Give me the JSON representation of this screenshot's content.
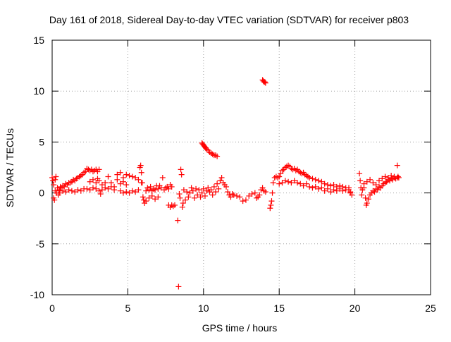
{
  "chart_data": {
    "type": "scatter",
    "title": "Day 161 of 2018, Sidereal Day-to-day VTEC variation (SDTVAR) for receiver p803",
    "xlabel": "GPS time / hours",
    "ylabel": "SDTVAR / TECUs",
    "xlim": [
      0,
      25
    ],
    "ylim": [
      -10,
      15
    ],
    "xticks": [
      0,
      5,
      10,
      15,
      20,
      25
    ],
    "yticks": [
      -10,
      -5,
      0,
      5,
      10,
      15
    ],
    "grid": true,
    "marker": "+",
    "color": "#ff0000",
    "series": [
      {
        "name": "SDTVAR",
        "points": [
          [
            0.0,
            1.5
          ],
          [
            0.05,
            1.2
          ],
          [
            0.1,
            -0.5
          ],
          [
            0.1,
            0.8
          ],
          [
            0.15,
            -0.7
          ],
          [
            0.2,
            1.3
          ],
          [
            0.2,
            0.2
          ],
          [
            0.25,
            1.6
          ],
          [
            0.3,
            0.0
          ],
          [
            0.35,
            0.5
          ],
          [
            0.4,
            -0.2
          ],
          [
            0.45,
            0.3
          ],
          [
            0.5,
            0.2
          ],
          [
            0.55,
            0.6
          ],
          [
            0.6,
            0.5
          ],
          [
            0.7,
            0.7
          ],
          [
            0.8,
            0.6
          ],
          [
            0.9,
            0.9
          ],
          [
            1.0,
            0.8
          ],
          [
            1.1,
            1.0
          ],
          [
            1.2,
            1.0
          ],
          [
            1.3,
            1.1
          ],
          [
            1.4,
            1.3
          ],
          [
            1.5,
            1.2
          ],
          [
            1.6,
            1.4
          ],
          [
            1.7,
            1.5
          ],
          [
            1.8,
            1.6
          ],
          [
            1.9,
            1.7
          ],
          [
            2.0,
            1.8
          ],
          [
            2.1,
            2.0
          ],
          [
            2.2,
            2.1
          ],
          [
            2.3,
            2.4
          ],
          [
            2.4,
            2.3
          ],
          [
            2.5,
            2.2
          ],
          [
            2.6,
            2.3
          ],
          [
            2.7,
            2.1
          ],
          [
            2.8,
            2.2
          ],
          [
            2.9,
            2.3
          ],
          [
            3.0,
            2.1
          ],
          [
            3.1,
            2.3
          ],
          [
            0.5,
            0.0
          ],
          [
            0.7,
            0.2
          ],
          [
            0.9,
            0.1
          ],
          [
            1.1,
            0.3
          ],
          [
            1.3,
            0.2
          ],
          [
            1.5,
            0.1
          ],
          [
            1.7,
            0.3
          ],
          [
            1.9,
            0.2
          ],
          [
            2.1,
            0.4
          ],
          [
            2.3,
            0.4
          ],
          [
            2.5,
            0.3
          ],
          [
            2.7,
            0.5
          ],
          [
            2.9,
            0.4
          ],
          [
            3.1,
            0.2
          ],
          [
            3.2,
            -0.1
          ],
          [
            2.5,
            1.1
          ],
          [
            2.7,
            1.3
          ],
          [
            2.9,
            1.0
          ],
          [
            3.0,
            1.4
          ],
          [
            3.1,
            1.2
          ],
          [
            3.3,
            0.8
          ],
          [
            3.5,
            1.0
          ],
          [
            3.7,
            1.6
          ],
          [
            3.9,
            1.0
          ],
          [
            4.1,
            0.6
          ],
          [
            4.3,
            1.3
          ],
          [
            4.5,
            0.9
          ],
          [
            4.7,
            1.1
          ],
          [
            4.9,
            0.8
          ],
          [
            3.3,
            0.3
          ],
          [
            3.5,
            0.5
          ],
          [
            3.7,
            0.4
          ],
          [
            3.9,
            0.6
          ],
          [
            4.1,
            0.3
          ],
          [
            4.3,
            1.8
          ],
          [
            4.5,
            2.0
          ],
          [
            4.7,
            1.5
          ],
          [
            4.9,
            1.8
          ],
          [
            5.1,
            1.7
          ],
          [
            5.3,
            1.6
          ],
          [
            5.5,
            1.5
          ],
          [
            5.7,
            1.3
          ],
          [
            5.9,
            1.0
          ],
          [
            4.5,
            0.2
          ],
          [
            4.7,
            0.0
          ],
          [
            4.9,
            0.1
          ],
          [
            5.1,
            0.0
          ],
          [
            5.3,
            0.2
          ],
          [
            5.5,
            0.1
          ],
          [
            5.7,
            0.3
          ],
          [
            5.8,
            2.5
          ],
          [
            5.85,
            2.7
          ],
          [
            5.9,
            2.0
          ],
          [
            5.95,
            1.0
          ],
          [
            6.0,
            -0.4
          ],
          [
            6.05,
            -0.7
          ],
          [
            6.1,
            -1.0
          ],
          [
            6.2,
            0.2
          ],
          [
            6.3,
            0.5
          ],
          [
            6.4,
            0.3
          ],
          [
            6.5,
            0.6
          ],
          [
            6.6,
            0.2
          ],
          [
            6.7,
            0.4
          ],
          [
            6.8,
            0.3
          ],
          [
            6.9,
            0.7
          ],
          [
            7.0,
            0.4
          ],
          [
            7.1,
            0.7
          ],
          [
            7.2,
            0.5
          ],
          [
            7.3,
            1.5
          ],
          [
            7.4,
            0.3
          ],
          [
            7.5,
            0.5
          ],
          [
            7.6,
            0.6
          ],
          [
            7.7,
            0.4
          ],
          [
            7.8,
            0.8
          ],
          [
            7.9,
            0.6
          ],
          [
            7.7,
            -1.2
          ],
          [
            7.8,
            -1.4
          ],
          [
            7.9,
            -1.2
          ],
          [
            8.0,
            -1.3
          ],
          [
            8.1,
            -1.2
          ],
          [
            6.2,
            -0.8
          ],
          [
            6.4,
            -0.5
          ],
          [
            6.6,
            -0.3
          ],
          [
            6.8,
            -0.6
          ],
          [
            7.0,
            -0.4
          ],
          [
            8.3,
            -2.7
          ],
          [
            8.35,
            -9.2
          ],
          [
            8.4,
            -0.1
          ],
          [
            8.45,
            -0.5
          ],
          [
            8.5,
            2.3
          ],
          [
            8.55,
            1.8
          ],
          [
            8.6,
            -1.4
          ],
          [
            8.65,
            -1.0
          ],
          [
            8.7,
            0.3
          ],
          [
            8.8,
            -0.7
          ],
          [
            8.9,
            0.1
          ],
          [
            9.0,
            -0.4
          ],
          [
            9.1,
            0.0
          ],
          [
            9.2,
            0.5
          ],
          [
            9.3,
            0.2
          ],
          [
            9.4,
            -0.5
          ],
          [
            9.5,
            0.4
          ],
          [
            9.6,
            -0.2
          ],
          [
            9.7,
            0.3
          ],
          [
            9.8,
            -0.4
          ],
          [
            9.9,
            0.0
          ],
          [
            10.0,
            0.4
          ],
          [
            10.1,
            -0.3
          ],
          [
            10.2,
            0.2
          ],
          [
            10.3,
            0.5
          ],
          [
            10.4,
            0.1
          ],
          [
            10.5,
            0.3
          ],
          [
            10.6,
            -0.2
          ],
          [
            10.7,
            0.6
          ],
          [
            10.8,
            0.1
          ],
          [
            10.9,
            0.9
          ],
          [
            11.0,
            0.4
          ],
          [
            11.1,
            1.2
          ],
          [
            11.2,
            1.5
          ],
          [
            11.3,
            1.0
          ],
          [
            11.4,
            0.8
          ],
          [
            11.5,
            0.6
          ],
          [
            11.6,
            0.1
          ],
          [
            11.7,
            -0.2
          ],
          [
            11.8,
            -0.4
          ],
          [
            11.9,
            -0.1
          ],
          [
            12.0,
            -0.2
          ],
          [
            12.2,
            -0.3
          ],
          [
            12.4,
            -0.4
          ],
          [
            12.6,
            -0.8
          ],
          [
            12.8,
            -0.7
          ],
          [
            13.0,
            -0.3
          ],
          [
            13.2,
            -0.1
          ],
          [
            13.4,
            0.0
          ],
          [
            13.5,
            -0.5
          ],
          [
            13.6,
            -0.4
          ],
          [
            13.7,
            -0.2
          ],
          [
            13.8,
            0.3
          ],
          [
            13.9,
            0.5
          ],
          [
            14.0,
            0.2
          ],
          [
            14.1,
            0.1
          ],
          [
            9.9,
            4.9
          ],
          [
            9.95,
            4.8
          ],
          [
            10.0,
            4.7
          ],
          [
            10.05,
            4.6
          ],
          [
            10.1,
            4.5
          ],
          [
            10.15,
            4.4
          ],
          [
            10.2,
            4.3
          ],
          [
            10.3,
            4.2
          ],
          [
            10.4,
            4.0
          ],
          [
            10.5,
            3.9
          ],
          [
            10.6,
            3.8
          ],
          [
            10.7,
            3.7
          ],
          [
            10.8,
            3.7
          ],
          [
            10.9,
            3.6
          ],
          [
            13.9,
            11.1
          ],
          [
            13.95,
            11.0
          ],
          [
            14.0,
            10.9
          ],
          [
            14.05,
            10.9
          ],
          [
            14.1,
            10.8
          ],
          [
            14.4,
            -1.5
          ],
          [
            14.45,
            -1.2
          ],
          [
            14.5,
            -0.8
          ],
          [
            14.55,
            0.0
          ],
          [
            14.6,
            1.0
          ],
          [
            14.7,
            1.5
          ],
          [
            14.8,
            1.6
          ],
          [
            14.9,
            1.5
          ],
          [
            15.0,
            1.6
          ],
          [
            15.1,
            1.9
          ],
          [
            15.2,
            2.2
          ],
          [
            15.3,
            2.3
          ],
          [
            15.4,
            2.5
          ],
          [
            15.5,
            2.6
          ],
          [
            15.6,
            2.7
          ],
          [
            15.7,
            2.6
          ],
          [
            15.8,
            2.4
          ],
          [
            15.9,
            2.3
          ],
          [
            16.0,
            2.4
          ],
          [
            16.1,
            2.2
          ],
          [
            16.2,
            2.3
          ],
          [
            16.3,
            2.1
          ],
          [
            16.4,
            2.0
          ],
          [
            16.5,
            1.9
          ],
          [
            16.6,
            2.0
          ],
          [
            16.7,
            1.8
          ],
          [
            16.8,
            1.7
          ],
          [
            16.9,
            1.6
          ],
          [
            17.0,
            1.5
          ],
          [
            17.2,
            1.4
          ],
          [
            17.4,
            1.3
          ],
          [
            17.6,
            1.2
          ],
          [
            17.8,
            1.1
          ],
          [
            18.0,
            0.9
          ],
          [
            18.2,
            0.8
          ],
          [
            18.4,
            0.7
          ],
          [
            18.6,
            0.8
          ],
          [
            18.8,
            0.6
          ],
          [
            19.0,
            0.7
          ],
          [
            19.2,
            0.6
          ],
          [
            19.4,
            0.5
          ],
          [
            19.6,
            0.3
          ],
          [
            19.7,
            0.1
          ],
          [
            19.8,
            -0.2
          ],
          [
            15.0,
            0.9
          ],
          [
            15.2,
            1.0
          ],
          [
            15.4,
            1.2
          ],
          [
            15.6,
            1.1
          ],
          [
            15.8,
            1.0
          ],
          [
            16.0,
            1.2
          ],
          [
            16.2,
            1.0
          ],
          [
            16.4,
            0.9
          ],
          [
            16.6,
            0.7
          ],
          [
            16.8,
            0.9
          ],
          [
            17.0,
            0.6
          ],
          [
            17.2,
            0.5
          ],
          [
            17.4,
            0.6
          ],
          [
            17.6,
            0.4
          ],
          [
            17.8,
            0.5
          ],
          [
            18.0,
            0.2
          ],
          [
            18.2,
            0.4
          ],
          [
            18.4,
            0.1
          ],
          [
            18.6,
            0.3
          ],
          [
            18.8,
            0.2
          ],
          [
            19.0,
            0.4
          ],
          [
            19.2,
            0.2
          ],
          [
            19.4,
            0.3
          ],
          [
            19.6,
            0.5
          ],
          [
            19.7,
            0.0
          ],
          [
            20.3,
            1.9
          ],
          [
            20.35,
            1.2
          ],
          [
            20.4,
            0.5
          ],
          [
            20.45,
            -0.2
          ],
          [
            20.5,
            0.3
          ],
          [
            20.6,
            0.5
          ],
          [
            20.7,
            -0.5
          ],
          [
            20.75,
            -1.2
          ],
          [
            20.8,
            -1.0
          ],
          [
            20.9,
            -0.6
          ],
          [
            21.0,
            -0.2
          ],
          [
            21.1,
            0.0
          ],
          [
            21.2,
            0.2
          ],
          [
            21.3,
            0.1
          ],
          [
            21.4,
            0.4
          ],
          [
            21.5,
            0.3
          ],
          [
            21.6,
            0.6
          ],
          [
            21.7,
            0.5
          ],
          [
            21.8,
            0.7
          ],
          [
            21.9,
            0.9
          ],
          [
            22.0,
            1.0
          ],
          [
            22.1,
            1.1
          ],
          [
            22.2,
            1.3
          ],
          [
            22.3,
            1.2
          ],
          [
            22.4,
            1.4
          ],
          [
            22.5,
            1.3
          ],
          [
            22.6,
            1.5
          ],
          [
            22.7,
            1.4
          ],
          [
            22.8,
            2.7
          ],
          [
            22.85,
            1.6
          ],
          [
            22.9,
            1.5
          ],
          [
            20.6,
            0.9
          ],
          [
            20.8,
            1.1
          ],
          [
            21.0,
            1.3
          ],
          [
            21.2,
            1.0
          ],
          [
            21.4,
            0.8
          ],
          [
            21.6,
            1.2
          ],
          [
            21.8,
            1.4
          ],
          [
            22.0,
            1.6
          ],
          [
            22.2,
            1.5
          ],
          [
            22.4,
            1.7
          ],
          [
            22.6,
            1.6
          ],
          [
            22.8,
            1.5
          ]
        ]
      }
    ]
  }
}
